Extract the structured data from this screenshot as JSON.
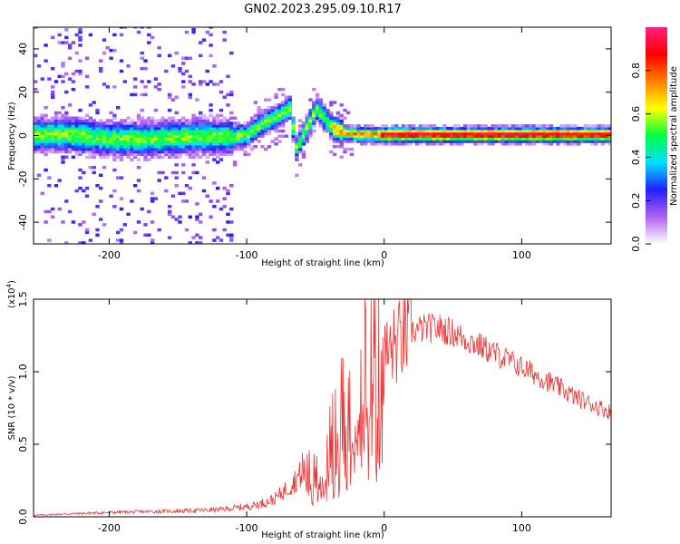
{
  "chart_data": [
    {
      "type": "heatmap",
      "title": "GN02.2023.295.09.10.R17",
      "xlabel": "Height of straight line (km)",
      "ylabel": "Frequency (Hz)",
      "xlim": [
        -255,
        165
      ],
      "ylim": [
        -50,
        50
      ],
      "xticks": [
        -200,
        -100,
        0,
        100
      ],
      "yticks": [
        -40,
        -20,
        0,
        20,
        40
      ],
      "colorbar": {
        "label": "Normalized spectral amplitude",
        "range": [
          0.0,
          1.0
        ],
        "ticks": [
          "0.0",
          "0.2",
          "0.4",
          "0.6",
          "0.8"
        ],
        "colors": [
          "#ffffff",
          "#b060f0",
          "#2020ff",
          "#00e0ff",
          "#00ff40",
          "#ffff00",
          "#ff8000",
          "#ff0000",
          "#ff2080"
        ]
      },
      "ridge": {
        "x": [
          -255,
          -230,
          -200,
          -170,
          -140,
          -110,
          -100,
          -90,
          -80,
          -70,
          -65,
          -55,
          -50,
          -45,
          -40,
          -35,
          -30,
          -20,
          -10,
          0,
          50,
          100,
          165
        ],
        "y": [
          0,
          0,
          -2,
          -2,
          -1,
          -1,
          0,
          5,
          8,
          12,
          -6,
          6,
          12,
          8,
          4,
          2,
          1,
          0,
          0,
          0,
          0,
          0,
          0
        ]
      }
    },
    {
      "type": "line",
      "xlabel": "Height of straight line (km)",
      "ylabel": "SNR (10 * v/v)",
      "exponent_label": "(x10",
      "exponent_sup": "4",
      "exponent_close": ")",
      "xlim": [
        -255,
        165
      ],
      "ylim": [
        0,
        1.5
      ],
      "xticks": [
        -200,
        -100,
        0,
        100
      ],
      "yticks": [
        "0.0",
        "0.5",
        "1.0",
        "1.5"
      ],
      "line_color": "#ee3333",
      "series": [
        {
          "x": [
            -255,
            -230,
            -200,
            -150,
            -120,
            -100,
            -90,
            -80,
            -70,
            -60,
            -50,
            -40,
            -35,
            -30,
            -25,
            -20,
            -15,
            -10,
            -5,
            0,
            10,
            20,
            30,
            40,
            50,
            60,
            80,
            100,
            120,
            140,
            165
          ],
          "values": [
            0.01,
            0.02,
            0.03,
            0.04,
            0.05,
            0.07,
            0.09,
            0.12,
            0.2,
            0.3,
            0.25,
            0.45,
            0.55,
            0.7,
            0.75,
            0.85,
            1.0,
            0.95,
            1.0,
            1.1,
            1.2,
            1.28,
            1.3,
            1.3,
            1.27,
            1.22,
            1.13,
            1.03,
            0.93,
            0.82,
            0.72
          ]
        }
      ]
    }
  ]
}
